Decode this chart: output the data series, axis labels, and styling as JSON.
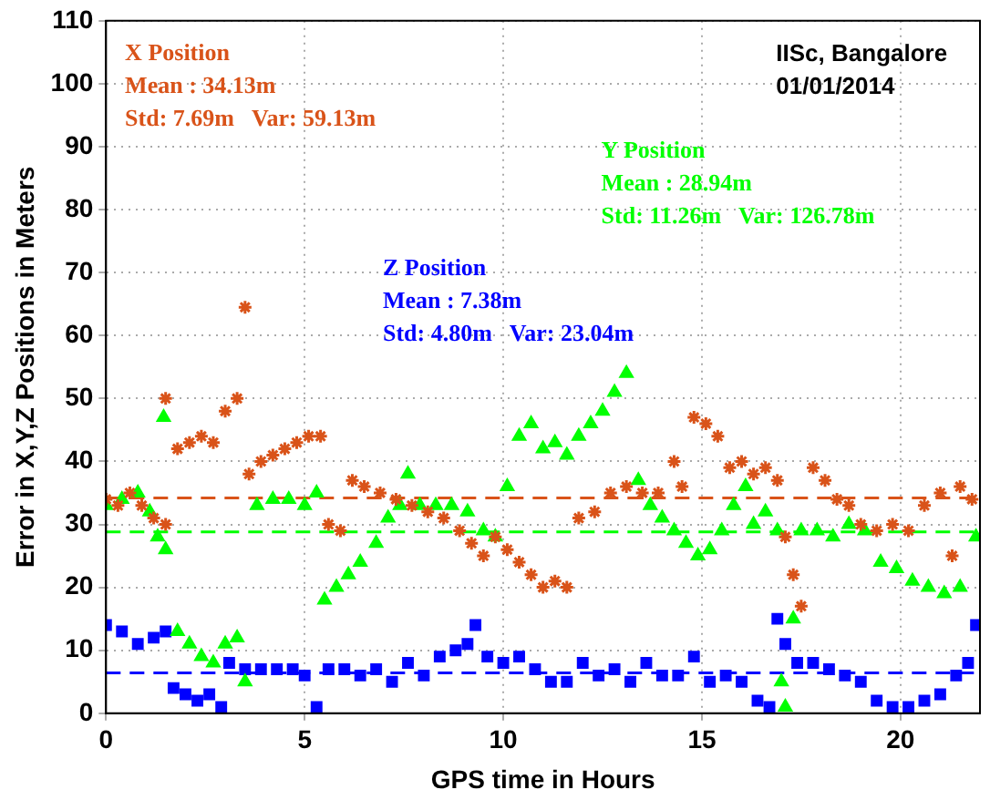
{
  "chart_data": {
    "type": "scatter",
    "xlabel": "GPS time in Hours",
    "ylabel": "Error in X,Y,Z Positions in Meters",
    "xlim": [
      0,
      22
    ],
    "xticks": [
      0,
      5,
      10,
      15,
      20
    ],
    "ylim": [
      0,
      110
    ],
    "yticks": [
      0,
      10,
      20,
      30,
      40,
      50,
      60,
      70,
      80,
      90,
      100,
      110
    ],
    "grid": true,
    "annotations": [
      "X Position\nMean : 34.13m\nStd: 7.69m   Var: 59.13m",
      "Y Position\nMean : 28.94m\nStd: 11.26m   Var: 126.78m",
      "Z Position\nMean : 7.38m\nStd: 4.80m   Var: 23.04m",
      "IISc, Bangalore\n01/01/2014"
    ],
    "ref_lines": [
      {
        "axis": "y",
        "value": 34.2,
        "color": "#d95319",
        "line_style": "dashed"
      },
      {
        "axis": "y",
        "value": 28.8,
        "color": "#00ff00",
        "line_style": "dashed"
      },
      {
        "axis": "y",
        "value": 6.4,
        "color": "#0000ff",
        "line_style": "dashed"
      }
    ],
    "series": [
      {
        "color": "#d95319",
        "marker": "cross",
        "x": [
          0,
          0.3,
          0.6,
          0.9,
          1.2,
          1.5,
          1.5,
          1.8,
          2.1,
          2.4,
          2.7,
          3.0,
          3.3,
          3.5,
          3.6,
          3.9,
          4.2,
          4.5,
          4.8,
          5.1,
          5.4,
          5.6,
          5.9,
          6.2,
          6.5,
          6.9,
          7.3,
          7.7,
          8.1,
          8.5,
          8.9,
          9.2,
          9.5,
          9.8,
          10.1,
          10.4,
          10.7,
          11.0,
          11.3,
          11.6,
          11.9,
          12.3,
          12.7,
          13.1,
          13.5,
          13.9,
          14.3,
          14.5,
          14.8,
          15.1,
          15.4,
          15.7,
          16.0,
          16.3,
          16.6,
          16.9,
          17.1,
          17.3,
          17.5,
          17.8,
          18.1,
          18.4,
          18.7,
          19.0,
          19.4,
          19.8,
          20.2,
          20.6,
          21.0,
          21.3,
          21.5,
          21.8
        ],
        "values": [
          34,
          33,
          35,
          33,
          31,
          30,
          50,
          42,
          43,
          44,
          43,
          48,
          50,
          64.5,
          38,
          40,
          41,
          42,
          43,
          44,
          44,
          30,
          29,
          37,
          36,
          35,
          34,
          33,
          32,
          31,
          29,
          27,
          25,
          28,
          26,
          24,
          22,
          20,
          21,
          20,
          31,
          32,
          35,
          36,
          35,
          35,
          40,
          36,
          47,
          46,
          44,
          39,
          40,
          38,
          39,
          37,
          28,
          22,
          17,
          39,
          37,
          34,
          33,
          30,
          29,
          30,
          29,
          33,
          35,
          25,
          36,
          34
        ]
      },
      {
        "color": "#00ff00",
        "marker": "triangle",
        "x": [
          0,
          0.4,
          0.8,
          1.1,
          1.3,
          1.45,
          1.5,
          1.8,
          2.1,
          2.4,
          2.7,
          3.0,
          3.3,
          3.5,
          3.8,
          4.2,
          4.6,
          5.0,
          5.3,
          5.5,
          5.8,
          6.1,
          6.4,
          6.8,
          7.1,
          7.4,
          7.6,
          7.9,
          8.3,
          8.7,
          9.1,
          9.5,
          9.8,
          10.1,
          10.4,
          10.7,
          11.0,
          11.3,
          11.6,
          11.9,
          12.2,
          12.5,
          12.8,
          13.1,
          13.4,
          13.7,
          14.0,
          14.3,
          14.6,
          14.9,
          15.2,
          15.5,
          15.8,
          16.1,
          16.3,
          16.6,
          16.9,
          17.0,
          17.1,
          17.3,
          17.5,
          17.9,
          18.3,
          18.7,
          19.1,
          19.5,
          19.9,
          20.3,
          20.7,
          21.1,
          21.5,
          21.9
        ],
        "values": [
          33,
          34,
          35,
          32,
          28,
          47,
          26,
          13,
          11,
          9,
          8,
          11,
          12,
          5,
          33,
          34,
          34,
          33,
          35,
          18,
          20,
          22,
          24,
          27,
          31,
          33,
          38,
          33,
          33,
          33,
          32,
          29,
          28,
          36,
          44,
          46,
          42,
          43,
          41,
          44,
          46,
          48,
          51,
          54,
          37,
          33,
          31,
          29,
          27,
          25,
          26,
          29,
          33,
          36,
          30,
          32,
          29,
          5,
          1,
          15,
          29,
          29,
          28,
          30,
          29,
          24,
          23,
          21,
          20,
          19,
          20,
          28
        ]
      },
      {
        "color": "#0000ff",
        "marker": "square",
        "x": [
          0,
          0.4,
          0.8,
          1.2,
          1.5,
          1.7,
          2.0,
          2.3,
          2.6,
          2.9,
          3.1,
          3.5,
          3.9,
          4.3,
          4.7,
          5.0,
          5.3,
          5.6,
          6.0,
          6.4,
          6.8,
          7.2,
          7.6,
          8.0,
          8.4,
          8.8,
          9.1,
          9.3,
          9.6,
          10.0,
          10.4,
          10.8,
          11.2,
          11.6,
          12.0,
          12.4,
          12.8,
          13.2,
          13.6,
          14.0,
          14.4,
          14.8,
          15.2,
          15.6,
          16.0,
          16.4,
          16.7,
          16.9,
          17.1,
          17.4,
          17.8,
          18.2,
          18.6,
          19.0,
          19.4,
          19.8,
          20.2,
          20.6,
          21.0,
          21.4,
          21.7,
          21.9
        ],
        "values": [
          14,
          13,
          11,
          12,
          13,
          4,
          3,
          2,
          3,
          1,
          8,
          7,
          7,
          7,
          7,
          6,
          1,
          7,
          7,
          6,
          7,
          5,
          8,
          6,
          9,
          10,
          11,
          14,
          9,
          8,
          9,
          7,
          5,
          5,
          8,
          6,
          7,
          5,
          8,
          6,
          6,
          9,
          5,
          6,
          5,
          2,
          1,
          15,
          11,
          8,
          8,
          7,
          6,
          5,
          2,
          1,
          1,
          2,
          3,
          6,
          8,
          14
        ]
      }
    ]
  }
}
